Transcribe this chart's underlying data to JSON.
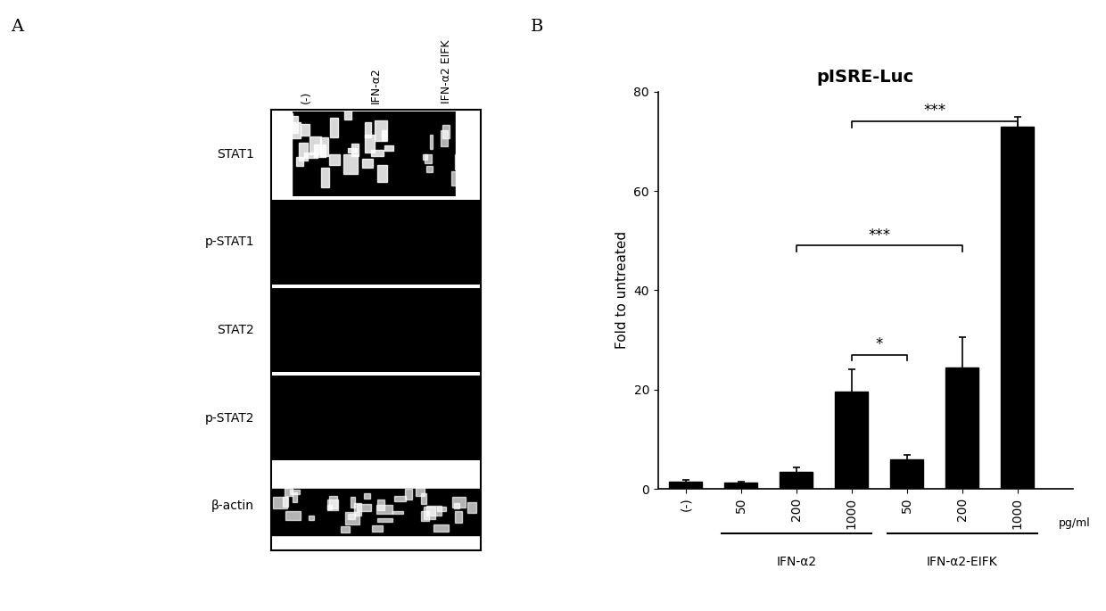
{
  "panel_a_label": "A",
  "panel_b_label": "B",
  "blot_labels": [
    "STAT1",
    "p-STAT1",
    "STAT2",
    "p-STAT2",
    "β-actin"
  ],
  "col_labels": [
    "(-)",
    "IFN-α2",
    "IFN-α2 EIFK"
  ],
  "bar_values": [
    1.5,
    1.2,
    3.5,
    19.5,
    6.0,
    24.5,
    73.0
  ],
  "bar_errors": [
    0.3,
    0.2,
    0.8,
    4.5,
    0.8,
    6.0,
    2.0
  ],
  "bar_labels": [
    "(-)",
    "50",
    "200",
    "1000",
    "50",
    "200",
    "1000"
  ],
  "bar_color": "#000000",
  "bar_width": 0.6,
  "title": "pISRE-Luc",
  "ylabel": "Fold to untreated",
  "xlabel_right": "pg/ml",
  "ylim": [
    0,
    80
  ],
  "yticks": [
    0,
    20,
    40,
    60,
    80
  ],
  "group_labels": [
    "IFN-α2",
    "IFN-α2-EIFK"
  ],
  "background_color": "#ffffff",
  "font_color": "#000000",
  "title_fontsize": 14,
  "label_fontsize": 11,
  "tick_fontsize": 10
}
